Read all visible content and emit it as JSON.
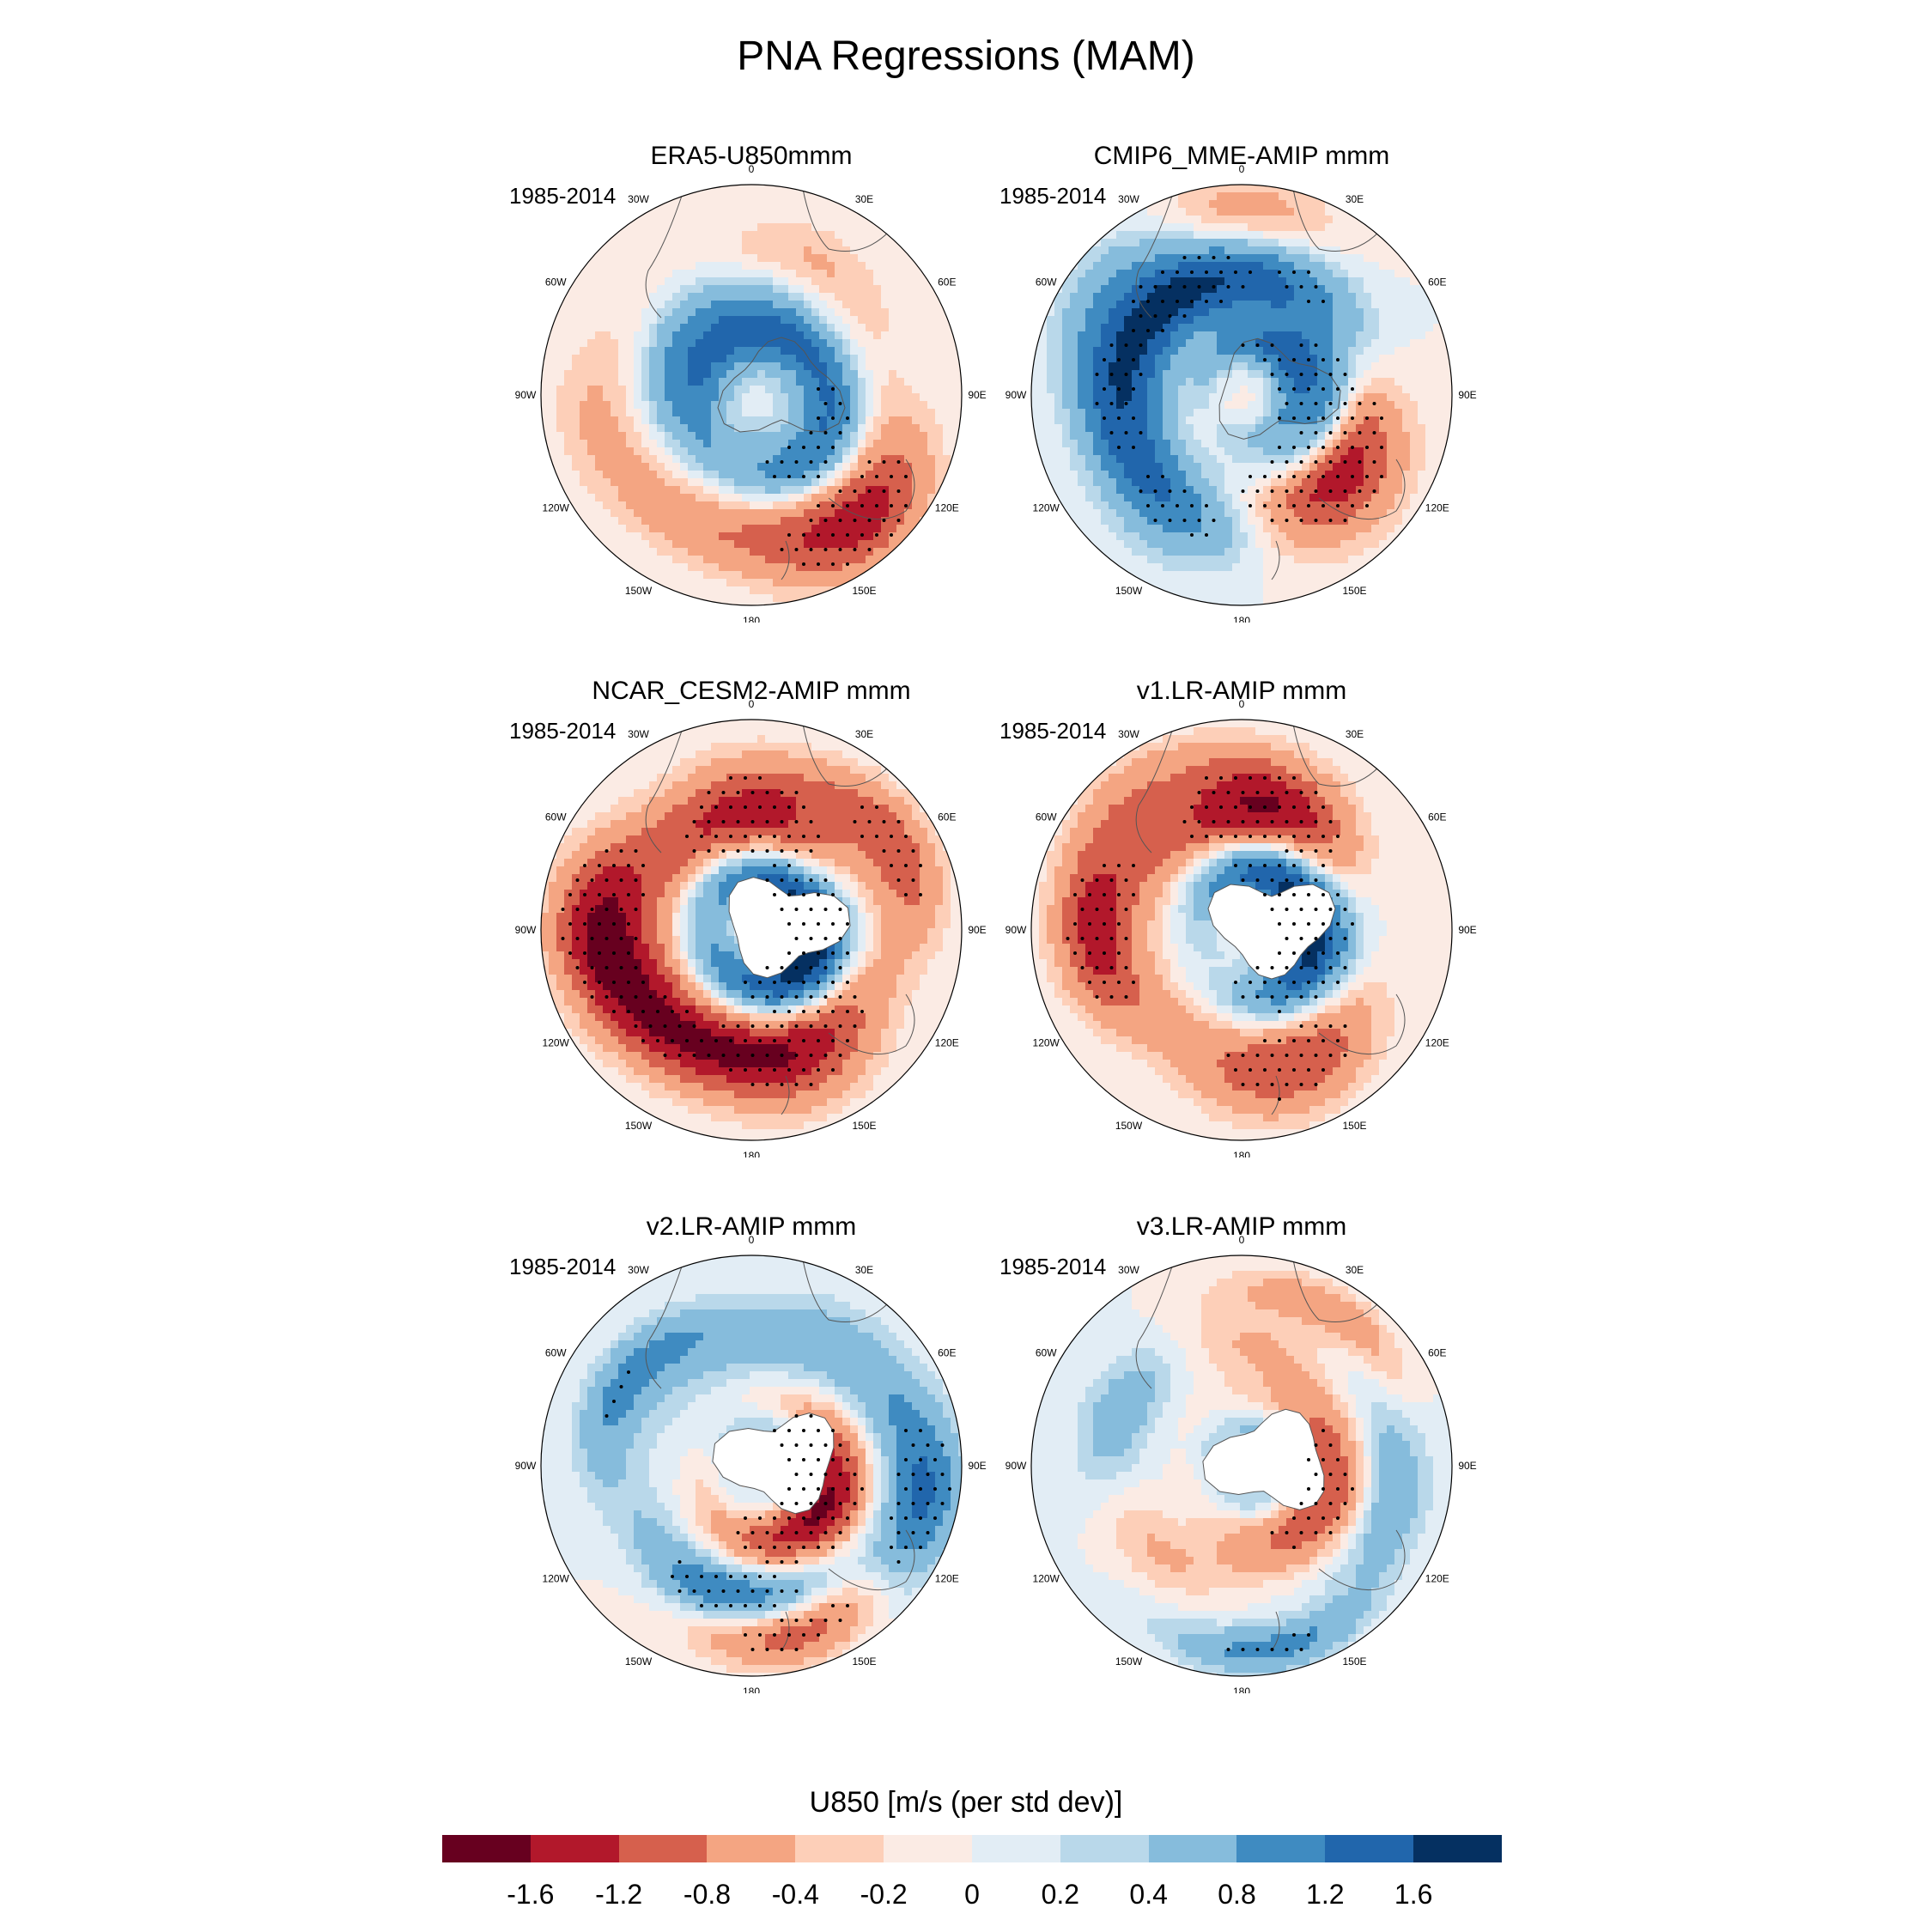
{
  "figure": {
    "title": "PNA Regressions (MAM)"
  },
  "panels": [
    {
      "title": "ERA5-U850mmm",
      "period": "1985-2014"
    },
    {
      "title": "CMIP6_MME-AMIP  mmm",
      "period": "1985-2014"
    },
    {
      "title": "NCAR_CESM2-AMIP  mmm",
      "period": "1985-2014"
    },
    {
      "title": "v1.LR-AMIP  mmm",
      "period": "1985-2014"
    },
    {
      "title": "v2.LR-AMIP  mmm",
      "period": "1985-2014"
    },
    {
      "title": "v3.LR-AMIP  mmm",
      "period": "1985-2014"
    }
  ],
  "longitude_labels": [
    "0",
    "30E",
    "60E",
    "90E",
    "120E",
    "150E",
    "180",
    "150W",
    "120W",
    "90W",
    "60W",
    "30W"
  ],
  "colorbar": {
    "title": "U850 [m/s (per std dev)]",
    "colors": [
      "#67001f",
      "#b2182b",
      "#d6604d",
      "#f4a582",
      "#fdcfb8",
      "#fbebe4",
      "#e2edf5",
      "#b9d8ea",
      "#86bcdc",
      "#3f8bc1",
      "#2166ac",
      "#053061"
    ],
    "tick_labels": [
      "-1.6",
      "-1.2",
      "-0.8",
      "-0.4",
      "-0.2",
      "0",
      "0.2",
      "0.4",
      "0.8",
      "1.2",
      "1.6"
    ]
  },
  "map_fields": [
    [
      {
        "lon": 140,
        "r": 0.78,
        "s": 0.16,
        "v": -0.65,
        "stip": true
      },
      {
        "lon": 125,
        "r": 0.4,
        "s": 0.12,
        "v": 0.55,
        "stip": true
      },
      {
        "lon": 100,
        "r": 0.2,
        "s": 0.1,
        "v": -0.35,
        "stip": false
      },
      {
        "lon": 40,
        "r": 0.25,
        "s": 0.13,
        "v": 0.45,
        "stip": false
      },
      {
        "lon": -20,
        "r": 0.45,
        "s": 0.12,
        "v": 0.3,
        "stip": false
      },
      {
        "lon": -80,
        "r": 0.3,
        "s": 0.14,
        "v": 0.35,
        "stip": false
      },
      {
        "lon": -100,
        "r": 0.75,
        "s": 0.14,
        "v": -0.2,
        "stip": false
      },
      {
        "lon": 25,
        "r": 0.7,
        "s": 0.12,
        "v": -0.2,
        "stip": false
      },
      {
        "lon": -160,
        "r": 0.68,
        "s": 0.12,
        "v": -0.25,
        "stip": false
      }
    ],
    [
      {
        "lon": 100,
        "r": 0.4,
        "s": 0.1,
        "v": 0.7,
        "stip": true
      },
      {
        "lon": 60,
        "r": 0.24,
        "s": 0.08,
        "v": 0.5,
        "stip": true
      },
      {
        "lon": 130,
        "r": 0.55,
        "s": 0.2,
        "v": -0.75,
        "stip": true
      },
      {
        "lon": -150,
        "r": 0.62,
        "s": 0.16,
        "v": 0.45,
        "stip": true
      },
      {
        "lon": -90,
        "r": 0.6,
        "s": 0.14,
        "v": 0.5,
        "stip": true
      },
      {
        "lon": -30,
        "r": 0.58,
        "s": 0.14,
        "v": 0.6,
        "stip": true
      },
      {
        "lon": 30,
        "r": 0.6,
        "s": 0.14,
        "v": 0.4,
        "stip": true
      },
      {
        "lon": 0,
        "r": 0.85,
        "s": 0.14,
        "v": -0.3,
        "stip": false
      },
      {
        "lon": -50,
        "r": 0.82,
        "s": 0.12,
        "v": 0.3,
        "stip": false
      }
    ],
    [
      {
        "lon": 100,
        "r": 0.32,
        "s": 0.12,
        "v": 0.85,
        "stip": true
      },
      {
        "lon": 160,
        "r": 0.6,
        "s": 0.18,
        "v": -0.7,
        "stip": true
      },
      {
        "lon": 0,
        "r": 0.55,
        "s": 0.18,
        "v": -0.6,
        "stip": true
      },
      {
        "lon": -90,
        "r": 0.72,
        "s": 0.16,
        "v": -0.75,
        "stip": true
      },
      {
        "lon": -140,
        "r": 0.62,
        "s": 0.15,
        "v": -0.5,
        "stip": true
      },
      {
        "lon": 60,
        "r": 0.78,
        "s": 0.12,
        "v": -0.5,
        "stip": true
      },
      {
        "lon": -30,
        "r": 0.28,
        "s": 0.1,
        "v": 0.35,
        "stip": false
      },
      {
        "lon": 150,
        "r": 0.35,
        "s": 0.15,
        "v": 0.3,
        "stip": false
      }
    ],
    [
      {
        "lon": 100,
        "r": 0.35,
        "s": 0.14,
        "v": 0.85,
        "stip": true
      },
      {
        "lon": 20,
        "r": 0.28,
        "s": 0.12,
        "v": 0.4,
        "stip": true
      },
      {
        "lon": 160,
        "r": 0.68,
        "s": 0.16,
        "v": -0.55,
        "stip": true
      },
      {
        "lon": 10,
        "r": 0.6,
        "s": 0.16,
        "v": -0.75,
        "stip": true
      },
      {
        "lon": -90,
        "r": 0.68,
        "s": 0.14,
        "v": -0.65,
        "stip": true
      },
      {
        "lon": 140,
        "r": 0.2,
        "s": 0.08,
        "v": -0.3,
        "stip": false
      },
      {
        "lon": -40,
        "r": 0.85,
        "s": 0.1,
        "v": -0.3,
        "stip": false
      }
    ],
    [
      {
        "lon": 120,
        "r": 0.38,
        "s": 0.14,
        "v": -0.85,
        "stip": true
      },
      {
        "lon": 85,
        "r": 0.22,
        "s": 0.08,
        "v": 0.45,
        "stip": true
      },
      {
        "lon": -170,
        "r": 0.62,
        "s": 0.11,
        "v": 0.55,
        "stip": true
      },
      {
        "lon": 165,
        "r": 0.82,
        "s": 0.1,
        "v": -0.5,
        "stip": true
      },
      {
        "lon": 100,
        "r": 0.82,
        "s": 0.13,
        "v": 0.6,
        "stip": true
      },
      {
        "lon": -60,
        "r": 0.72,
        "s": 0.1,
        "v": 0.4,
        "stip": true
      },
      {
        "lon": 40,
        "r": 0.7,
        "s": 0.14,
        "v": 0.25,
        "stip": false
      },
      {
        "lon": -20,
        "r": 0.6,
        "s": 0.14,
        "v": 0.2,
        "stip": false
      }
    ],
    [
      {
        "lon": 110,
        "r": 0.42,
        "s": 0.14,
        "v": -0.55,
        "stip": true
      },
      {
        "lon": 80,
        "r": 0.2,
        "s": 0.08,
        "v": 0.35,
        "stip": false
      },
      {
        "lon": -70,
        "r": 0.58,
        "s": 0.14,
        "v": 0.4,
        "stip": false
      },
      {
        "lon": 170,
        "r": 0.88,
        "s": 0.08,
        "v": 0.45,
        "stip": true
      },
      {
        "lon": -120,
        "r": 0.55,
        "s": 0.12,
        "v": -0.3,
        "stip": false
      },
      {
        "lon": 100,
        "r": 0.72,
        "s": 0.12,
        "v": 0.35,
        "stip": false
      },
      {
        "lon": 0,
        "r": 0.55,
        "s": 0.14,
        "v": -0.25,
        "stip": false
      },
      {
        "lon": 30,
        "r": 0.85,
        "s": 0.08,
        "v": -0.3,
        "stip": true
      }
    ]
  ]
}
